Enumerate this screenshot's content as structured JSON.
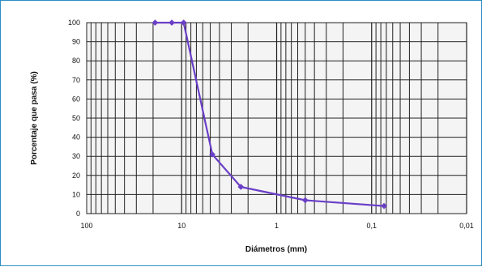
{
  "chart_data": {
    "type": "line",
    "title": "",
    "xlabel": "Diámetros (mm)",
    "ylabel": "Porcentaje que pasa (%)",
    "x_scale": "log",
    "x_reversed": true,
    "xlim": [
      100,
      0.01
    ],
    "ylim": [
      0,
      100
    ],
    "x_ticks": [
      100,
      10,
      1,
      0.1,
      0.01
    ],
    "x_tick_labels": [
      "100",
      "10",
      "1",
      "0,1",
      "0,01"
    ],
    "y_ticks": [
      0,
      10,
      20,
      30,
      40,
      50,
      60,
      70,
      80,
      90,
      100
    ],
    "y_tick_labels": [
      "0",
      "10",
      "20",
      "30",
      "40",
      "50",
      "60",
      "70",
      "80",
      "90",
      "100"
    ],
    "grid": true,
    "legend": "none",
    "series": [
      {
        "color": "#6a3fc8",
        "x": [
          19.05,
          12.7,
          9.525,
          4.76,
          2.38,
          0.5,
          0.074
        ],
        "y": [
          100,
          100,
          100,
          31,
          14,
          7,
          4
        ]
      }
    ]
  }
}
